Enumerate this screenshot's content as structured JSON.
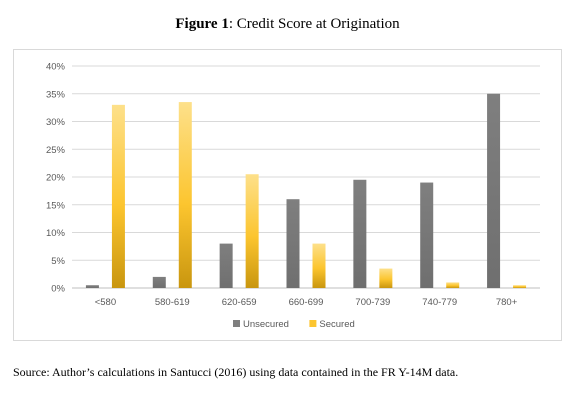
{
  "figure": {
    "label": "Figure 1",
    "title": ": Credit Score at Origination",
    "source": "Source: Author’s calculations in Santucci (2016) using data contained in the FR Y-14M data."
  },
  "chart_data": {
    "type": "bar",
    "title": "Figure 1: Credit Score at Origination",
    "categories": [
      "<580",
      "580-619",
      "620-659",
      "660-699",
      "700-739",
      "740-779",
      "780+"
    ],
    "series": [
      {
        "name": "Unsecured",
        "color": "#7f7f7f",
        "values": [
          0.5,
          2,
          8,
          16,
          19.5,
          19,
          35
        ]
      },
      {
        "name": "Secured",
        "color": "#fcc52f",
        "values": [
          33,
          33.5,
          20.5,
          8,
          3.5,
          1,
          0.5
        ]
      }
    ],
    "ylim": [
      0,
      40
    ],
    "yticks": [
      0,
      5,
      10,
      15,
      20,
      25,
      30,
      35,
      40
    ],
    "ytick_format": "percent",
    "grid": true,
    "legend_position": "bottom",
    "xlabel": "",
    "ylabel": ""
  }
}
